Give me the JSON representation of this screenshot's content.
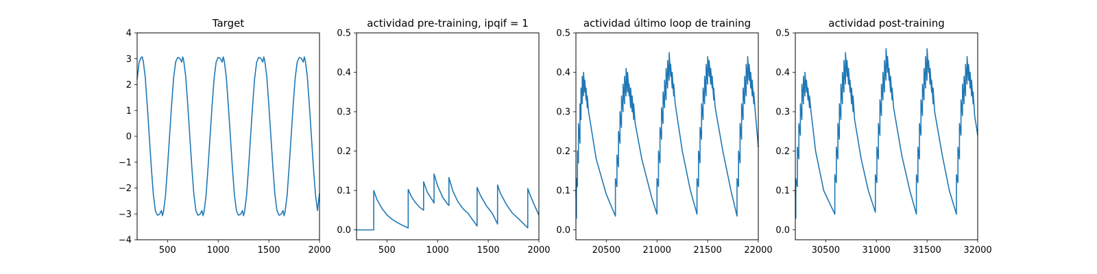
{
  "chart_data": [
    {
      "type": "line",
      "title": "Target",
      "xlim": [
        200,
        2000
      ],
      "ylim": [
        -4,
        4
      ],
      "xticks": [
        500,
        1000,
        1500,
        2000
      ],
      "xtick_labels": [
        "500",
        "1000",
        "1500",
        "2000"
      ],
      "yticks": [
        -4,
        -3,
        -2,
        -1,
        0,
        1,
        2,
        3,
        4
      ],
      "ytick_labels": [
        "−4",
        "−3",
        "−2",
        "−1",
        "0",
        "1",
        "2",
        "3",
        "4"
      ],
      "color": "#1f77b4",
      "series": [
        {
          "x": [
            200,
            220,
            240,
            250,
            260,
            280,
            300,
            320,
            340,
            360,
            380,
            400,
            420,
            440,
            450,
            460,
            480,
            500,
            520,
            540,
            560,
            580,
            600,
            620,
            640,
            650,
            660,
            680,
            700,
            720,
            740,
            760,
            780,
            800,
            820,
            840,
            850,
            860,
            880,
            900,
            920,
            940,
            960,
            980,
            1000,
            1020,
            1040,
            1050,
            1060,
            1080,
            1100,
            1120,
            1140,
            1160,
            1180,
            1200,
            1220,
            1240,
            1250,
            1260,
            1280,
            1300,
            1320,
            1340,
            1360,
            1380,
            1400,
            1420,
            1440,
            1450,
            1460,
            1480,
            1500,
            1520,
            1540,
            1560,
            1580,
            1600,
            1620,
            1640,
            1650,
            1660,
            1680,
            1700,
            1720,
            1740,
            1760,
            1780,
            1800,
            1820,
            1840,
            1850,
            1860,
            1880,
            1900,
            1920,
            1940,
            1960,
            1980,
            2000
          ],
          "y": [
            2.2,
            2.87,
            3.05,
            3.07,
            2.92,
            2.3,
            1.2,
            0.0,
            -1.2,
            -2.25,
            -2.87,
            -3.05,
            -3.02,
            -2.87,
            -3.07,
            -2.92,
            -2.3,
            -1.2,
            0.0,
            1.2,
            2.25,
            2.87,
            3.05,
            3.02,
            2.87,
            3.07,
            2.92,
            2.3,
            1.2,
            0.0,
            -1.2,
            -2.25,
            -2.87,
            -3.05,
            -3.02,
            -2.87,
            -3.07,
            -2.92,
            -2.3,
            -1.2,
            0.0,
            1.2,
            2.25,
            2.87,
            3.05,
            3.02,
            2.87,
            3.07,
            2.92,
            2.3,
            1.2,
            0.0,
            -1.2,
            -2.25,
            -2.87,
            -3.05,
            -3.02,
            -2.87,
            -3.07,
            -2.92,
            -2.3,
            -1.2,
            0.0,
            1.2,
            2.25,
            2.87,
            3.05,
            3.02,
            2.87,
            3.07,
            2.92,
            2.3,
            1.2,
            0.0,
            -1.2,
            -2.25,
            -2.87,
            -3.05,
            -3.02,
            -2.87,
            -3.07,
            -2.92,
            -2.3,
            -1.2,
            0.0,
            1.2,
            2.25,
            2.87,
            3.05,
            3.02,
            2.87,
            3.07,
            2.92,
            2.3,
            1.2,
            0.0,
            -1.2,
            -2.25,
            -2.87,
            -2.2
          ]
        }
      ]
    },
    {
      "type": "line",
      "title": "actividad pre-training, ipqif = 1",
      "xlim": [
        200,
        2000
      ],
      "ylim": [
        -0.025,
        0.5
      ],
      "xticks": [
        500,
        1000,
        1500,
        2000
      ],
      "xtick_labels": [
        "500",
        "1000",
        "1500",
        "2000"
      ],
      "yticks": [
        0.0,
        0.1,
        0.2,
        0.3,
        0.4,
        0.5
      ],
      "ytick_labels": [
        "0.0",
        "0.1",
        "0.2",
        "0.3",
        "0.4",
        "0.5"
      ],
      "color": "#1f77b4",
      "series": [
        {
          "x": [
            200,
            370,
            370,
            400,
            450,
            500,
            550,
            600,
            650,
            710,
            710,
            740,
            780,
            820,
            862,
            862,
            900,
            950,
            965,
            965,
            1000,
            1050,
            1100,
            1112,
            1112,
            1150,
            1200,
            1250,
            1300,
            1390,
            1390,
            1420,
            1480,
            1540,
            1592,
            1592,
            1620,
            1680,
            1740,
            1800,
            1890,
            1890,
            1920,
            1960,
            2000
          ],
          "y": [
            0.0,
            0.0,
            0.1,
            0.078,
            0.055,
            0.038,
            0.027,
            0.019,
            0.012,
            0.005,
            0.103,
            0.085,
            0.07,
            0.058,
            0.05,
            0.122,
            0.095,
            0.075,
            0.068,
            0.142,
            0.112,
            0.083,
            0.065,
            0.062,
            0.133,
            0.099,
            0.072,
            0.054,
            0.042,
            0.01,
            0.108,
            0.089,
            0.062,
            0.042,
            0.015,
            0.114,
            0.093,
            0.064,
            0.042,
            0.028,
            0.005,
            0.105,
            0.084,
            0.06,
            0.038
          ]
        }
      ]
    },
    {
      "type": "line",
      "title": "actividad último loop de training",
      "xlim": [
        20200,
        22000
      ],
      "ylim": [
        -0.025,
        0.5
      ],
      "xticks": [
        20500,
        21000,
        21500,
        22000
      ],
      "xtick_labels": [
        "20500",
        "21000",
        "21500",
        "22000"
      ],
      "yticks": [
        0.0,
        0.1,
        0.2,
        0.3,
        0.4,
        0.5
      ],
      "ytick_labels": [
        "0.0",
        "0.1",
        "0.2",
        "0.3",
        "0.4",
        "0.5"
      ],
      "color": "#1f77b4",
      "series": [
        {
          "x": [
            20200,
            20205,
            20205,
            20215,
            20215,
            20225,
            20225,
            20240,
            20240,
            20250,
            20250,
            20262,
            20262,
            20275,
            20275,
            20288,
            20288,
            20300,
            20300,
            20312,
            20312,
            20325,
            20400,
            20500,
            20590,
            20590,
            20605,
            20605,
            20620,
            20620,
            20635,
            20635,
            20650,
            20650,
            20665,
            20665,
            20680,
            20680,
            20695,
            20695,
            20710,
            20710,
            20725,
            20725,
            20740,
            20740,
            20755,
            20755,
            20770,
            20770,
            20785,
            20850,
            20950,
            21000,
            21000,
            21015,
            21015,
            21030,
            21030,
            21045,
            21045,
            21060,
            21060,
            21075,
            21075,
            21090,
            21090,
            21105,
            21105,
            21120,
            21120,
            21135,
            21135,
            21150,
            21150,
            21165,
            21165,
            21180,
            21250,
            21330,
            21395,
            21395,
            21410,
            21410,
            21425,
            21425,
            21440,
            21440,
            21455,
            21455,
            21470,
            21470,
            21485,
            21485,
            21500,
            21500,
            21515,
            21515,
            21530,
            21530,
            21545,
            21545,
            21560,
            21560,
            21575,
            21650,
            21730,
            21790,
            21790,
            21805,
            21805,
            21820,
            21820,
            21835,
            21835,
            21850,
            21850,
            21865,
            21865,
            21880,
            21880,
            21895,
            21895,
            21910,
            21910,
            21925,
            21925,
            21940,
            21940,
            21955,
            21955,
            21970,
            22000
          ],
          "y": [
            0.1,
            0.03,
            0.13,
            0.11,
            0.2,
            0.17,
            0.27,
            0.22,
            0.32,
            0.28,
            0.36,
            0.32,
            0.39,
            0.34,
            0.4,
            0.35,
            0.38,
            0.33,
            0.36,
            0.31,
            0.34,
            0.3,
            0.18,
            0.09,
            0.035,
            0.13,
            0.11,
            0.19,
            0.16,
            0.25,
            0.22,
            0.3,
            0.26,
            0.34,
            0.3,
            0.37,
            0.32,
            0.39,
            0.34,
            0.41,
            0.35,
            0.4,
            0.34,
            0.37,
            0.31,
            0.36,
            0.3,
            0.34,
            0.28,
            0.32,
            0.27,
            0.18,
            0.08,
            0.04,
            0.13,
            0.11,
            0.2,
            0.17,
            0.26,
            0.23,
            0.31,
            0.27,
            0.35,
            0.31,
            0.38,
            0.33,
            0.41,
            0.36,
            0.43,
            0.38,
            0.45,
            0.39,
            0.42,
            0.36,
            0.4,
            0.34,
            0.37,
            0.32,
            0.2,
            0.1,
            0.04,
            0.13,
            0.11,
            0.2,
            0.17,
            0.26,
            0.23,
            0.32,
            0.28,
            0.36,
            0.32,
            0.39,
            0.34,
            0.42,
            0.37,
            0.44,
            0.39,
            0.43,
            0.37,
            0.41,
            0.36,
            0.39,
            0.33,
            0.36,
            0.31,
            0.2,
            0.1,
            0.035,
            0.13,
            0.11,
            0.2,
            0.17,
            0.27,
            0.23,
            0.32,
            0.28,
            0.36,
            0.32,
            0.39,
            0.34,
            0.42,
            0.37,
            0.44,
            0.38,
            0.42,
            0.36,
            0.4,
            0.34,
            0.38,
            0.32,
            0.35,
            0.3,
            0.21
          ]
        }
      ]
    },
    {
      "type": "line",
      "title": "actividad post-training",
      "xlim": [
        30200,
        32000
      ],
      "ylim": [
        -0.025,
        0.5
      ],
      "xticks": [
        30500,
        31000,
        31500,
        32000
      ],
      "xtick_labels": [
        "30500",
        "31000",
        "31500",
        "32000"
      ],
      "yticks": [
        0.0,
        0.1,
        0.2,
        0.3,
        0.4,
        0.5
      ],
      "ytick_labels": [
        "0.0",
        "0.1",
        "0.2",
        "0.3",
        "0.4",
        "0.5"
      ],
      "color": "#1f77b4",
      "series": [
        {
          "x": [
            30200,
            30205,
            30205,
            30220,
            30220,
            30235,
            30235,
            30250,
            30250,
            30265,
            30265,
            30280,
            30280,
            30295,
            30295,
            30310,
            30310,
            30325,
            30325,
            30340,
            30340,
            30355,
            30400,
            30480,
            30590,
            30590,
            30605,
            30605,
            30620,
            30620,
            30635,
            30635,
            30650,
            30650,
            30665,
            30665,
            30680,
            30680,
            30695,
            30695,
            30710,
            30710,
            30725,
            30725,
            30740,
            30740,
            30755,
            30755,
            30770,
            30770,
            30785,
            30850,
            30920,
            30990,
            30990,
            31005,
            31005,
            31020,
            31020,
            31035,
            31035,
            31050,
            31050,
            31065,
            31065,
            31080,
            31080,
            31095,
            31095,
            31110,
            31110,
            31125,
            31125,
            31140,
            31140,
            31155,
            31155,
            31170,
            31250,
            31330,
            31395,
            31395,
            31410,
            31410,
            31425,
            31425,
            31440,
            31440,
            31455,
            31455,
            31470,
            31470,
            31485,
            31485,
            31500,
            31500,
            31515,
            31515,
            31530,
            31530,
            31545,
            31545,
            31560,
            31560,
            31575,
            31650,
            31720,
            31790,
            31790,
            31805,
            31805,
            31820,
            31820,
            31835,
            31835,
            31850,
            31850,
            31865,
            31865,
            31880,
            31880,
            31895,
            31895,
            31910,
            31910,
            31925,
            31925,
            31940,
            31940,
            31955,
            31955,
            31970,
            32000
          ],
          "y": [
            0.1,
            0.03,
            0.13,
            0.11,
            0.21,
            0.18,
            0.27,
            0.24,
            0.32,
            0.28,
            0.37,
            0.32,
            0.39,
            0.34,
            0.4,
            0.35,
            0.38,
            0.33,
            0.36,
            0.31,
            0.34,
            0.3,
            0.2,
            0.1,
            0.04,
            0.14,
            0.12,
            0.21,
            0.18,
            0.27,
            0.23,
            0.32,
            0.28,
            0.37,
            0.32,
            0.4,
            0.35,
            0.43,
            0.37,
            0.45,
            0.39,
            0.43,
            0.37,
            0.41,
            0.35,
            0.38,
            0.32,
            0.36,
            0.3,
            0.34,
            0.28,
            0.18,
            0.1,
            0.045,
            0.14,
            0.12,
            0.21,
            0.18,
            0.27,
            0.24,
            0.33,
            0.29,
            0.37,
            0.33,
            0.4,
            0.35,
            0.43,
            0.38,
            0.46,
            0.4,
            0.44,
            0.38,
            0.41,
            0.35,
            0.39,
            0.33,
            0.36,
            0.31,
            0.19,
            0.1,
            0.04,
            0.14,
            0.12,
            0.21,
            0.18,
            0.27,
            0.24,
            0.33,
            0.29,
            0.37,
            0.33,
            0.41,
            0.36,
            0.44,
            0.38,
            0.46,
            0.4,
            0.43,
            0.37,
            0.41,
            0.35,
            0.38,
            0.32,
            0.36,
            0.3,
            0.19,
            0.1,
            0.04,
            0.14,
            0.12,
            0.21,
            0.18,
            0.27,
            0.24,
            0.33,
            0.29,
            0.37,
            0.32,
            0.39,
            0.34,
            0.42,
            0.37,
            0.44,
            0.38,
            0.42,
            0.36,
            0.4,
            0.34,
            0.38,
            0.32,
            0.35,
            0.29,
            0.24
          ]
        }
      ]
    }
  ]
}
